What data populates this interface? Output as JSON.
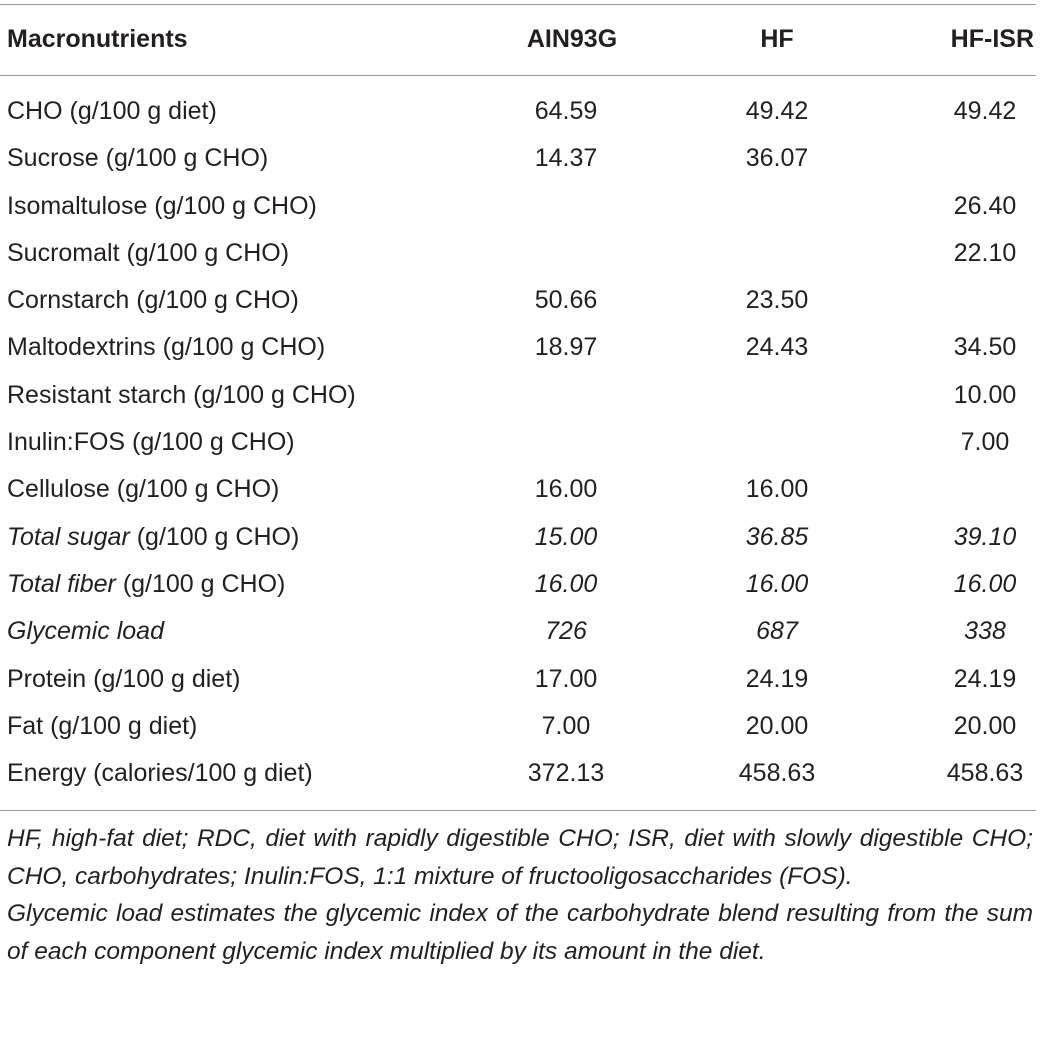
{
  "table": {
    "headers": [
      "Macronutrients",
      "AIN93G",
      "HF",
      "HF-ISR"
    ],
    "rows": [
      {
        "label": "CHO (g/100 g diet)",
        "label_italic": "",
        "label_rest": "",
        "values": [
          "64.59",
          "49.42",
          "49.42"
        ],
        "italic_values": false
      },
      {
        "label": "Sucrose (g/100 g CHO)",
        "label_italic": "",
        "label_rest": "",
        "values": [
          "14.37",
          "36.07",
          ""
        ],
        "italic_values": false
      },
      {
        "label": "Isomaltulose (g/100 g CHO)",
        "label_italic": "",
        "label_rest": "",
        "values": [
          "",
          "",
          "26.40"
        ],
        "italic_values": false
      },
      {
        "label": "Sucromalt (g/100 g CHO)",
        "label_italic": "",
        "label_rest": "",
        "values": [
          "",
          "",
          "22.10"
        ],
        "italic_values": false
      },
      {
        "label": "Cornstarch (g/100 g CHO)",
        "label_italic": "",
        "label_rest": "",
        "values": [
          "50.66",
          "23.50",
          ""
        ],
        "italic_values": false
      },
      {
        "label": "Maltodextrins (g/100 g CHO)",
        "label_italic": "",
        "label_rest": "",
        "values": [
          "18.97",
          "24.43",
          "34.50"
        ],
        "italic_values": false
      },
      {
        "label": "Resistant starch (g/100 g CHO)",
        "label_italic": "",
        "label_rest": "",
        "values": [
          "",
          "",
          "10.00"
        ],
        "italic_values": false
      },
      {
        "label": "Inulin:FOS (g/100 g CHO)",
        "label_italic": "",
        "label_rest": "",
        "values": [
          "",
          "",
          "7.00"
        ],
        "italic_values": false
      },
      {
        "label": "Cellulose (g/100 g CHO)",
        "label_italic": "",
        "label_rest": "",
        "values": [
          "16.00",
          "16.00",
          ""
        ],
        "italic_values": false
      },
      {
        "label": "",
        "label_italic": "Total sugar",
        "label_rest": " (g/100 g CHO)",
        "values": [
          "15.00",
          "36.85",
          "39.10"
        ],
        "italic_values": true
      },
      {
        "label": "",
        "label_italic": "Total fiber",
        "label_rest": " (g/100 g CHO)",
        "values": [
          "16.00",
          "16.00",
          "16.00"
        ],
        "italic_values": true
      },
      {
        "label": "",
        "label_italic": "Glycemic load",
        "label_rest": "",
        "values": [
          "726",
          "687",
          "338"
        ],
        "italic_values": true
      },
      {
        "label": "Protein (g/100 g diet)",
        "label_italic": "",
        "label_rest": "",
        "values": [
          "17.00",
          "24.19",
          "24.19"
        ],
        "italic_values": false
      },
      {
        "label": "Fat (g/100 g diet)",
        "label_italic": "",
        "label_rest": "",
        "values": [
          "7.00",
          "20.00",
          "20.00"
        ],
        "italic_values": false
      },
      {
        "label": "Energy (calories/100 g diet)",
        "label_italic": "",
        "label_rest": "",
        "values": [
          "372.13",
          "458.63",
          "458.63"
        ],
        "italic_values": false
      }
    ]
  },
  "footnotes": [
    "HF, high-fat diet; RDC, diet with rapidly digestible CHO; ISR, diet with slowly digestible CHO; CHO, carbohydrates; Inulin:FOS, 1:1 mixture of fructooligosaccharides (FOS).",
    "Glycemic load estimates the glycemic index of the carbohydrate blend resulting from the sum of each component glycemic index multiplied by its amount in the diet."
  ]
}
